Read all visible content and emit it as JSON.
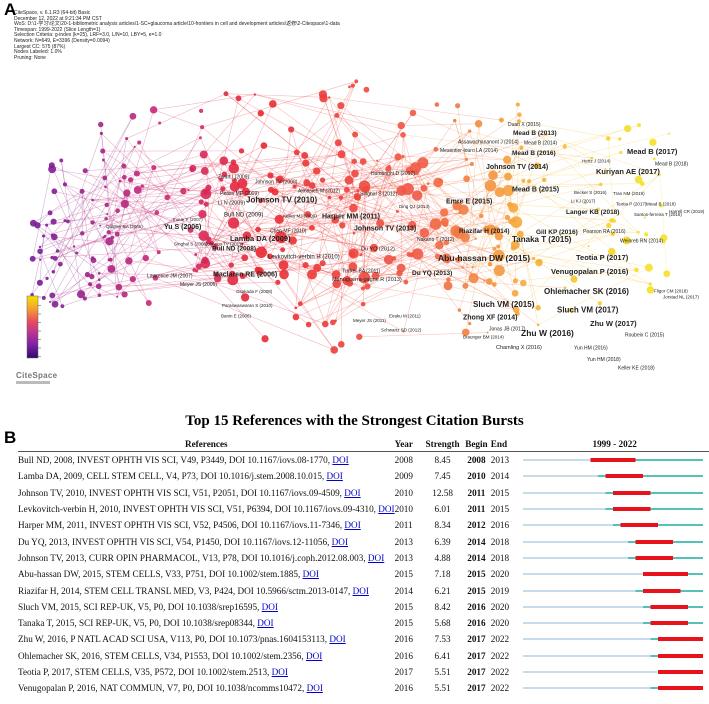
{
  "panel_a": {
    "letter": "A",
    "meta_lines": [
      "CiteSpace, v. 6.1.R3 (64-bit) Basic",
      "December 12, 2022 at 9:21:34 PM CST",
      "WoS: D:\\1-学习\\论文\\20-1-bibliometric analysis articles\\1-SC+glaucoma article\\10-frontiers in cell and development articles\\返修\\2-Citespace\\1-data",
      "Timespan: 1999-2022 (Slice Length=1)",
      "Selection Criteria: g-index (k=25), LRF=3.0, L/N=10, LBY=5, e=1.0",
      "Network: N=649, E=3396 (Density=0.0094)",
      "Largest CC: 575 (87%)",
      "Nodes Labeled: 1.0%",
      "Pruning: None"
    ],
    "logo": "CiteSpace",
    "legend_colors": [
      "#f4e300",
      "#f3a330",
      "#e8505a",
      "#b93394",
      "#7820a6",
      "#2c0b6a"
    ],
    "node_labels": [
      "Duan X (2015)",
      "Mead B (2013)",
      "Assawachananont J (2014)",
      "Mead B (2014)",
      "Mesentier-louro LA (2014)",
      "Mead B (2016)",
      "Mead B (2017)",
      "Hertz J (2014)",
      "Mead B (2018)",
      "Zwart I (2009)",
      "Johnson TV (2009)",
      "Johnson TV (2014)",
      "Kuriyan AE (2017)",
      "Hambright D (2012)",
      "Pease ME (2009)",
      "Almasieh M (2012)",
      "Singhal S (2012)",
      "Li N (2009)",
      "Johnson TV (2010)",
      "Mead B (2015)",
      "Becker S (2016)",
      "Tran NM (2019)",
      "Li KJ (2017)",
      "Teotia P (2017)",
      "Mead B (2018)",
      "Harrell CR (2019)",
      "Bull ND (2009)",
      "Kelley MJ (2009)",
      "Emre E (2015)",
      "Ding QJ (2014)",
      "Langer KB (2018)",
      "Santos-ferreira T (2016)",
      "Inoue Y (2007)",
      "Harper MM (2011)",
      "Johnson TV (2013)",
      "Riazifar H (2014)",
      "Gill KP (2016)",
      "Pearson RA (2016)",
      "Quigley RA (2006)",
      "Yu S (2006)",
      "Chen MF (2010)",
      "Weinreb RN (2014)",
      "Johnson TV (2011)",
      "Singhal S (2008)",
      "Lamba DA (2009)",
      "Nakano T (2012)",
      "Tanaka T (2015)",
      "Bull ND (2008)",
      "Du YQ (2012)",
      "Levkovitch-verbin H (2010)",
      "Abu-hassan DW (2015)",
      "Teotia P (2017)",
      "Venugopalan P (2016)",
      "Lawrence JM (2007)",
      "Tucker BA (2011)",
      "Ohlemacher SK (2016)",
      "Meyer JS (2006)",
      "Osakada F (2008)",
      "Maclaren RE (2006)",
      "Du YQ (2013)",
      "Fligor CM (2018)",
      "Manuguerra-gagne R (2013)",
      "Jorstad NL (2017)",
      "Paraswaswaran S (2010)",
      "Sluch VM (2015)",
      "Sluch VM (2017)",
      "Banin E (2006)",
      "Meyer JS (2011)",
      "Eiraku M (2011)",
      "Zhong XF (2014)",
      "Zhu W (2017)",
      "Schwartz SD (2012)",
      "Jonas JB (2017)",
      "Zhu W (2016)",
      "Roubeix C (2015)",
      "Braunger BM (2014)",
      "Chamling X (2016)",
      "Yun HM (2016)",
      "Yun HM (2018)",
      "Keller KE (2018)"
    ]
  },
  "panel_b": {
    "letter": "B",
    "title": "Top 15 References with the Strongest Citation Bursts",
    "headers": {
      "references": "References",
      "year": "Year",
      "strength": "Strength",
      "begin": "Begin",
      "end": "End",
      "range": "1999 - 2022"
    },
    "colors": {
      "burst": "#e8121a",
      "cited": "#55c1b8",
      "before": "#c4dcec"
    }
  },
  "chart_data": {
    "type": "table",
    "timeline": {
      "start": 1999,
      "end": 2022
    },
    "rows": [
      {
        "ref": "Bull ND, 2008, INVEST OPHTH VIS SCI, V49, P3449, DOI 10.1167/iovs.08-1770,",
        "doi": "DOI",
        "year": 2008,
        "strength": "8.45",
        "begin": 2008,
        "end": 2013
      },
      {
        "ref": "Lamba DA, 2009, CELL STEM CELL, V4, P73, DOI 10.1016/j.stem.2008.10.015,",
        "doi": "DOI",
        "year": 2009,
        "strength": "7.45",
        "begin": 2010,
        "end": 2014
      },
      {
        "ref": "Johnson TV, 2010, INVEST OPHTH VIS SCI, V51, P2051, DOI 10.1167/iovs.09-4509,",
        "doi": "DOI",
        "year": 2010,
        "strength": "12.58",
        "begin": 2011,
        "end": 2015
      },
      {
        "ref": "Levkovitch-verbin H, 2010, INVEST OPHTH VIS SCI, V51, P6394, DOI 10.1167/iovs.09-4310,",
        "doi": "DOI",
        "year": 2010,
        "strength": "6.01",
        "begin": 2011,
        "end": 2015
      },
      {
        "ref": "Harper MM, 2011, INVEST OPHTH VIS SCI, V52, P4506, DOI 10.1167/iovs.11-7346,",
        "doi": "DOI",
        "year": 2011,
        "strength": "8.34",
        "begin": 2012,
        "end": 2016
      },
      {
        "ref": "Du YQ, 2013, INVEST OPHTH VIS SCI, V54, P1450, DOI 10.1167/iovs.12-11056,",
        "doi": "DOI",
        "year": 2013,
        "strength": "6.39",
        "begin": 2014,
        "end": 2018
      },
      {
        "ref": "Johnson TV, 2013, CURR OPIN PHARMACOL, V13, P78, DOI 10.1016/j.coph.2012.08.003,",
        "doi": "DOI",
        "year": 2013,
        "strength": "4.88",
        "begin": 2014,
        "end": 2018
      },
      {
        "ref": "Abu-hassan DW, 2015, STEM CELLS, V33, P751, DOI 10.1002/stem.1885,",
        "doi": "DOI",
        "year": 2015,
        "strength": "7.18",
        "begin": 2015,
        "end": 2020
      },
      {
        "ref": "Riazifar H, 2014, STEM CELL TRANSL MED, V3, P424, DOI 10.5966/sctm.2013-0147,",
        "doi": "DOI",
        "year": 2014,
        "strength": "6.21",
        "begin": 2015,
        "end": 2019
      },
      {
        "ref": "Sluch VM, 2015, SCI REP-UK, V5, P0, DOI 10.1038/srep16595,",
        "doi": "DOI",
        "year": 2015,
        "strength": "8.42",
        "begin": 2016,
        "end": 2020
      },
      {
        "ref": "Tanaka T, 2015, SCI REP-UK, V5, P0, DOI 10.1038/srep08344,",
        "doi": "DOI",
        "year": 2015,
        "strength": "5.68",
        "begin": 2016,
        "end": 2020
      },
      {
        "ref": "Zhu W, 2016, P NATL ACAD SCI USA, V113, P0, DOI 10.1073/pnas.1604153113,",
        "doi": "DOI",
        "year": 2016,
        "strength": "7.53",
        "begin": 2017,
        "end": 2022
      },
      {
        "ref": "Ohlemacher SK, 2016, STEM CELLS, V34, P1553, DOI 10.1002/stem.2356,",
        "doi": "DOI",
        "year": 2016,
        "strength": "6.41",
        "begin": 2017,
        "end": 2022
      },
      {
        "ref": "Teotia P, 2017, STEM CELLS, V35, P572, DOI 10.1002/stem.2513,",
        "doi": "DOI",
        "year": 2017,
        "strength": "5.51",
        "begin": 2017,
        "end": 2022
      },
      {
        "ref": "Venugopalan P, 2016, NAT COMMUN, V7, P0, DOI 10.1038/ncomms10472,",
        "doi": "DOI",
        "year": 2016,
        "strength": "5.51",
        "begin": 2017,
        "end": 2022
      }
    ]
  }
}
